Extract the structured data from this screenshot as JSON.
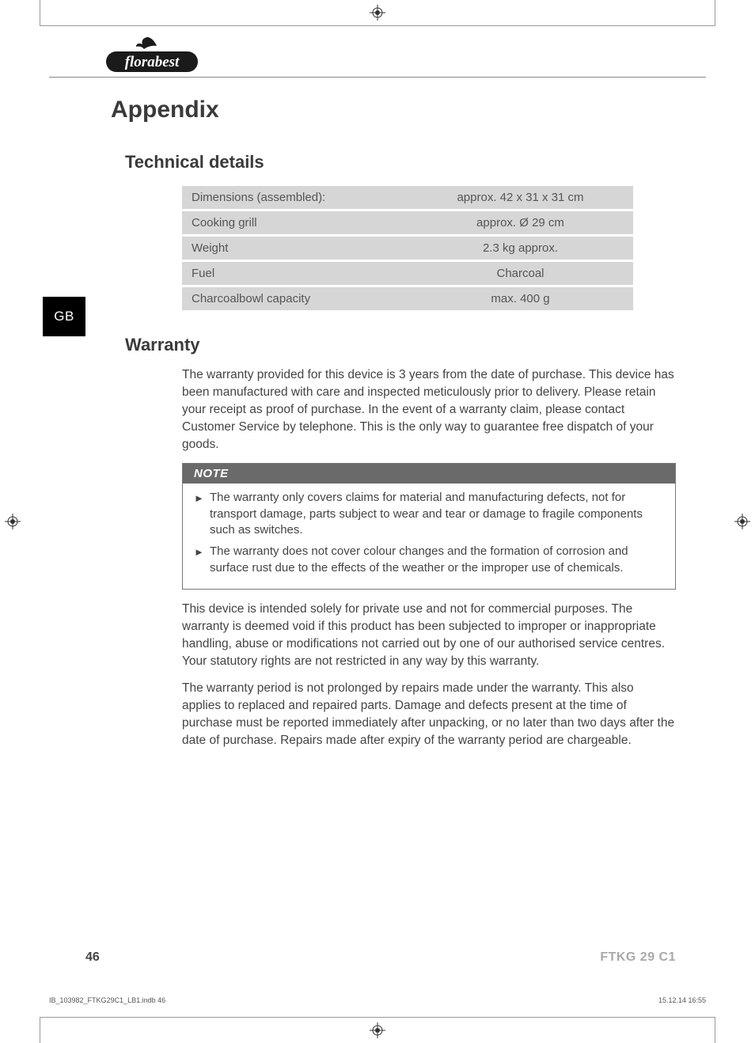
{
  "brand": "florabest",
  "language_tab": "GB",
  "heading_main": "Appendix",
  "section_tech": {
    "title": "Technical details",
    "rows": [
      {
        "label": "Dimensions (assembled):",
        "value": "approx. 42 x 31 x 31 cm"
      },
      {
        "label": "Cooking grill",
        "value": "approx. Ø 29 cm"
      },
      {
        "label": "Weight",
        "value": "2.3 kg approx."
      },
      {
        "label": "Fuel",
        "value": "Charcoal"
      },
      {
        "label": "Charcoalbowl capacity",
        "value": "max. 400 g"
      }
    ],
    "row_bg": "#d6d6d6"
  },
  "section_warranty": {
    "title": "Warranty",
    "para1": "The warranty provided for this device is 3 years from the date of purchase. This device has been manufactured with care and inspected meticulously prior to delivery. Please retain your receipt as proof of purchase. In the event of a warranty claim, please contact Customer Service by telephone. This is the only way to guarantee free dispatch of your goods.",
    "note_label": "NOTE",
    "note_items": [
      "The warranty only covers claims for material and manufacturing defects, not for transport damage, parts subject to wear and tear or damage to fragile components such as switches.",
      "The warranty does not cover colour changes and the formation of corrosion and surface rust due to the effects of the weather or the improper use of chemicals."
    ],
    "para2": "This device is intended solely for private use and not for commercial purposes. The warranty is deemed void if this product has been subjected to improper or inappropriate handling, abuse or modifications not carried out by one of our authorised service centres. Your statutory rights are not restricted in any way by this warranty.",
    "para3": "The warranty period is not prolonged by repairs made under the warranty. This also applies to replaced and repaired parts. Damage and defects present at the time of purchase must be reported immediately after unpacking, or no later than two days after the date of purchase. Repairs made after expiry of the warranty period are chargeable."
  },
  "footer": {
    "page_number": "46",
    "model": "FTKG 29 C1"
  },
  "imprint": {
    "file": "IB_103982_FTKG29C1_LB1.indb   46",
    "datetime": "15.12.14   16:55"
  },
  "colors": {
    "text": "#3a3a3a",
    "muted": "#a9a9a9",
    "note_head_bg": "#6a6a6a",
    "tab_bg": "#000000"
  }
}
